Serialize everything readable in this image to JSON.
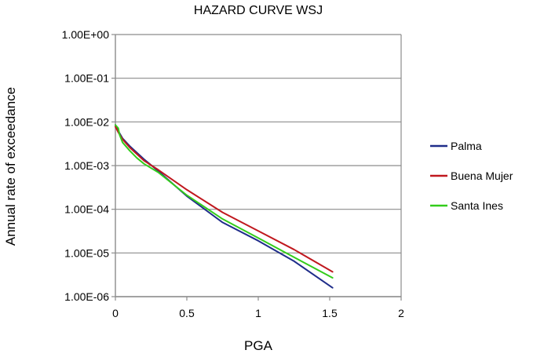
{
  "chart_data": {
    "type": "line",
    "title": "HAZARD CURVE WSJ",
    "xlabel": "PGA",
    "ylabel": "Annual rate of exceedance",
    "xlim": [
      0,
      2
    ],
    "x_ticks": [
      0,
      0.5,
      1,
      1.5,
      2
    ],
    "x_tick_labels": [
      "0",
      "0.5",
      "1",
      "1.5",
      "2"
    ],
    "y_scale": "log",
    "ylim": [
      1e-06,
      1
    ],
    "y_ticks": [
      1,
      0.1,
      0.01,
      0.001,
      0.0001,
      1e-05,
      1e-06
    ],
    "y_tick_labels": [
      "1.00E+00",
      "1.00E-01",
      "1.00E-02",
      "1.00E-03",
      "1.00E-04",
      "1.00E-05",
      "1.00E-06"
    ],
    "grid": "horizontal",
    "legend_position": "right",
    "series": [
      {
        "name": "Palma",
        "color": "#1f2d8a",
        "x": [
          0,
          0.02,
          0.05,
          0.1,
          0.2,
          0.3,
          0.5,
          0.75,
          1.0,
          1.25,
          1.52
        ],
        "y": [
          0.0085,
          0.0062,
          0.0042,
          0.0028,
          0.0014,
          0.00075,
          0.0002,
          5e-05,
          1.9e-05,
          6.5e-06,
          1.6e-06
        ]
      },
      {
        "name": "Buena Mujer",
        "color": "#c0181e",
        "x": [
          0,
          0.02,
          0.05,
          0.1,
          0.2,
          0.3,
          0.5,
          0.75,
          1.0,
          1.25,
          1.52
        ],
        "y": [
          0.0078,
          0.0058,
          0.004,
          0.0026,
          0.0013,
          0.0008,
          0.00028,
          8.5e-05,
          3.2e-05,
          1.2e-05,
          3.7e-06
        ]
      },
      {
        "name": "Santa Ines",
        "color": "#33cc1a",
        "x": [
          0,
          0.02,
          0.03,
          0.05,
          0.1,
          0.15,
          0.2,
          0.3,
          0.5,
          0.75,
          1.0,
          1.25,
          1.52
        ],
        "y": [
          0.0085,
          0.0072,
          0.005,
          0.0034,
          0.0022,
          0.0015,
          0.0011,
          0.0007,
          0.00021,
          6e-05,
          2.2e-05,
          8e-06,
          2.7e-06
        ]
      }
    ]
  }
}
